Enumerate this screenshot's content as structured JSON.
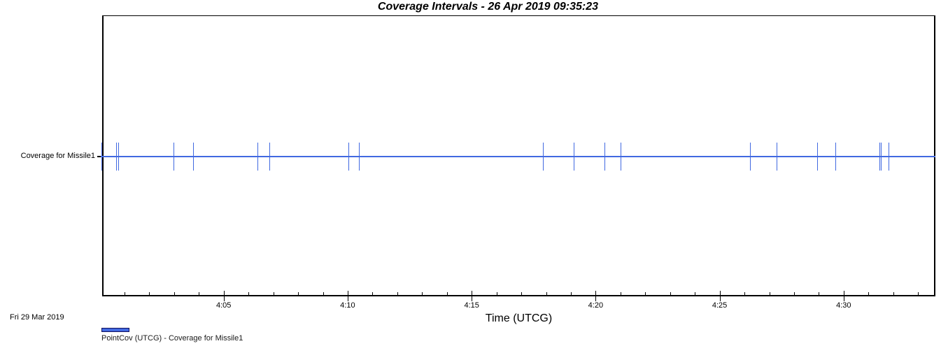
{
  "title": "Coverage Intervals - 26 Apr 2019 09:35:23",
  "footer": {
    "date_stamp": "Fri 29  Mar 2019"
  },
  "legend": {
    "label": "PointCov (UTCG) - Coverage for Missile1",
    "swatch_color": "#4169E1",
    "swatch_border_color": "#10105f"
  },
  "colors": {
    "series_blue": "#4169E1",
    "axis_black": "#000000",
    "background": "#ffffff"
  },
  "chart_data": {
    "type": "timeline",
    "title": "Coverage Intervals - 26 Apr 2019 09:35:23",
    "xlabel": "Time (UTCG)",
    "rows": [
      {
        "label": "Coverage for Missile1"
      }
    ],
    "x_axis": {
      "unit": "decimal minutes after 04:00 UTCG",
      "start": 0.1,
      "end": 33.7,
      "minor_tick_step": 1,
      "major_ticks": [
        {
          "t": 5,
          "label": "4:05"
        },
        {
          "t": 10,
          "label": "4:10"
        },
        {
          "t": 15,
          "label": "4:15"
        },
        {
          "t": 20,
          "label": "4:20"
        },
        {
          "t": 25,
          "label": "4:25"
        },
        {
          "t": 30,
          "label": "4:30"
        }
      ]
    },
    "coverage_line": {
      "row": "Coverage for Missile1",
      "start": 0.1,
      "end": 33.7,
      "color": "#4169E1"
    },
    "event_ticks": [
      {
        "t": 0.08,
        "utcg": "04:00:05"
      },
      {
        "t": 0.66,
        "utcg": "04:00:40"
      },
      {
        "t": 0.76,
        "utcg": "04:00:46"
      },
      {
        "t": 2.98,
        "utcg": "04:02:59"
      },
      {
        "t": 3.77,
        "utcg": "04:03:46"
      },
      {
        "t": 6.36,
        "utcg": "04:06:22"
      },
      {
        "t": 6.84,
        "utcg": "04:06:51"
      },
      {
        "t": 10.03,
        "utcg": "04:10:02"
      },
      {
        "t": 10.45,
        "utcg": "04:10:27"
      },
      {
        "t": 17.87,
        "utcg": "04:17:52"
      },
      {
        "t": 19.11,
        "utcg": "04:19:07"
      },
      {
        "t": 20.36,
        "utcg": "04:20:21"
      },
      {
        "t": 21.0,
        "utcg": "04:21:00"
      },
      {
        "t": 26.22,
        "utcg": "04:26:13"
      },
      {
        "t": 27.3,
        "utcg": "04:27:18"
      },
      {
        "t": 28.93,
        "utcg": "04:28:56"
      },
      {
        "t": 29.67,
        "utcg": "04:29:40"
      },
      {
        "t": 31.44,
        "utcg": "04:31:27"
      },
      {
        "t": 31.51,
        "utcg": "04:31:31"
      },
      {
        "t": 31.81,
        "utcg": "04:31:49"
      }
    ]
  }
}
